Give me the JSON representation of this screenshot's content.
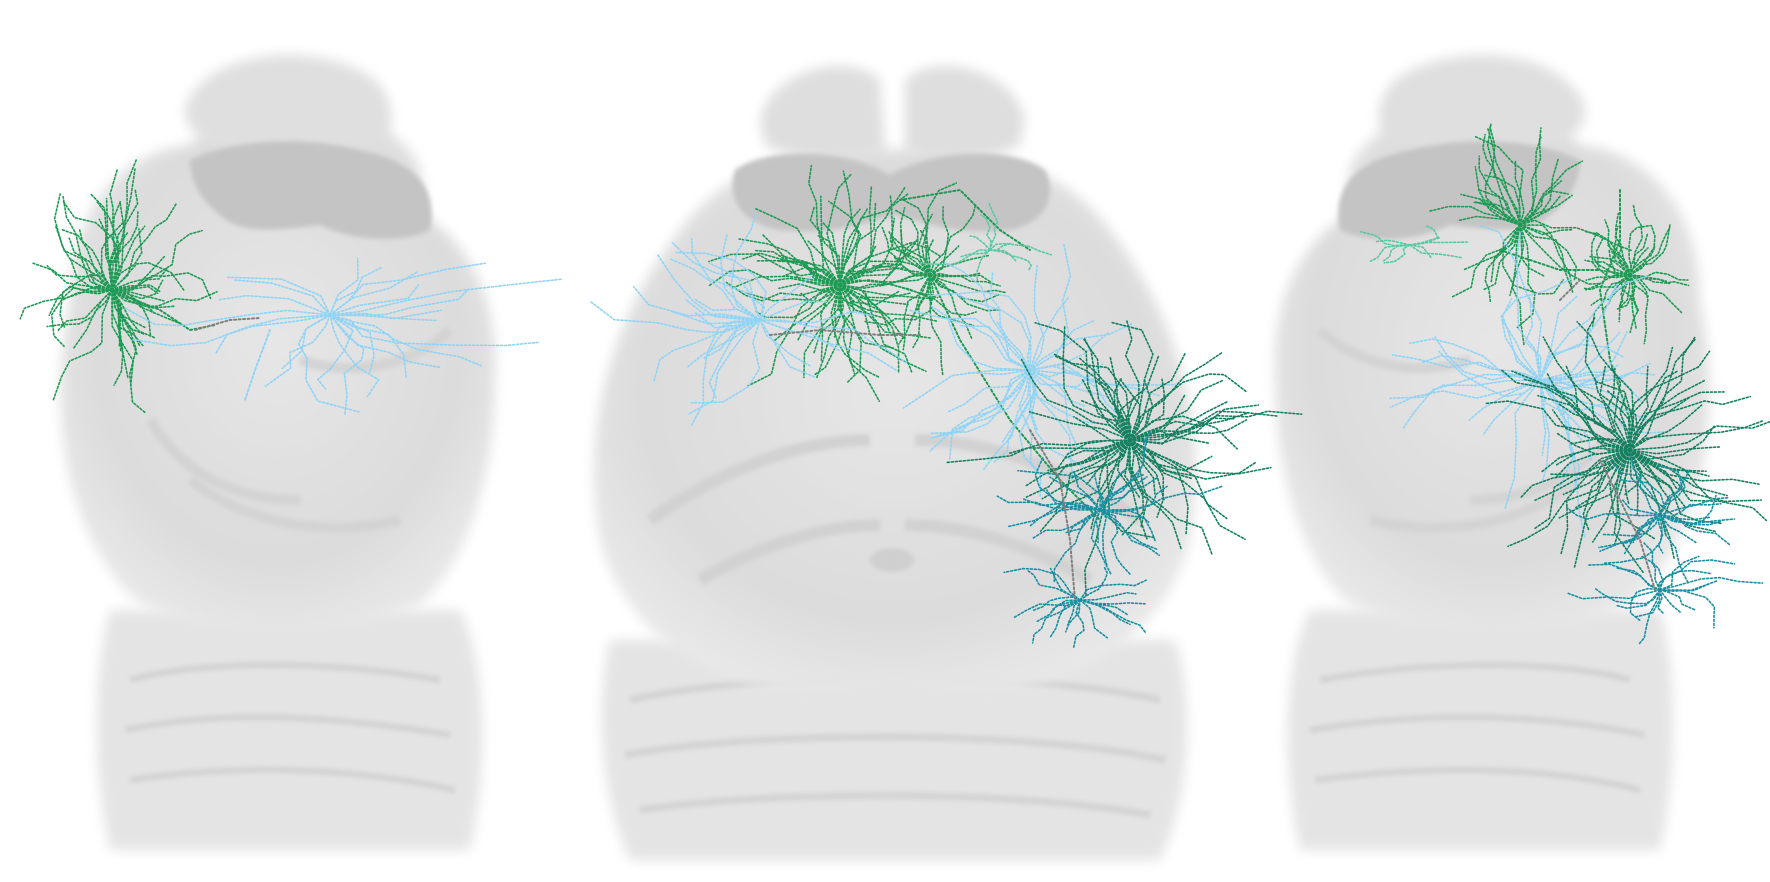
{
  "figure": {
    "views": [
      {
        "id": "view-left",
        "orientation": "left-lateral"
      },
      {
        "id": "view-center",
        "orientation": "dorsal"
      },
      {
        "id": "view-right",
        "orientation": "right-lateral"
      }
    ],
    "colors": {
      "background": "#ffffff",
      "brain_tissue": "#e1e1e1",
      "brain_shading": "#cfcfcf",
      "ventricle": "#bdbdbd",
      "green": "#1e9a55",
      "dark_green": "#148060",
      "light_blue": "#8fd3f5",
      "teal": "#1a8fa0",
      "mint": "#58c9a4",
      "gray_trace": "#808080"
    },
    "neuron_colors": [
      "green",
      "dark_green",
      "light_blue",
      "teal",
      "mint",
      "gray_trace"
    ]
  }
}
